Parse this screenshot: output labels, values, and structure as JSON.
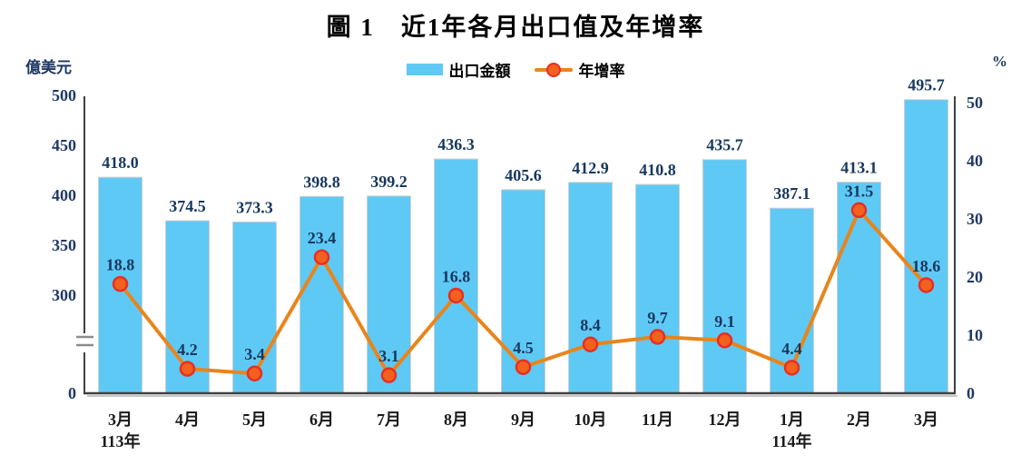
{
  "title": "圖 1　近1年各月出口值及年增率",
  "legend": {
    "bar_label": "出口金額",
    "line_label": "年增率"
  },
  "left_axis": {
    "unit": "億美元",
    "ticks": [
      500,
      450,
      400,
      350,
      300,
      0
    ],
    "has_break": true
  },
  "right_axis": {
    "unit": "%",
    "ticks": [
      50,
      40,
      30,
      20,
      10,
      0
    ]
  },
  "colors": {
    "bar": "#5EC9F5",
    "bar_stroke": "#cfcfcf",
    "line": "#E8851C",
    "marker_fill": "#F2611D",
    "marker_stroke": "#E72F24",
    "value_label": "#17375E",
    "tick_label": "#1F3864",
    "month_label": "#1a1a1a",
    "axis": "#3f3f3f",
    "axis_shadow": "#c6c6c6",
    "break_mark": "#8c8c8c"
  },
  "chart_data": {
    "type": "combo",
    "categories": [
      "3月",
      "4月",
      "5月",
      "6月",
      "7月",
      "8月",
      "9月",
      "10月",
      "11月",
      "12月",
      "1月",
      "2月",
      "3月"
    ],
    "year_notes": [
      {
        "index": 0,
        "label": "113年"
      },
      {
        "index": 10,
        "label": "114年"
      }
    ],
    "series": [
      {
        "name": "出口金額",
        "type": "bar",
        "axis": "left",
        "unit": "億美元",
        "values": [
          418.0,
          374.5,
          373.3,
          398.8,
          399.2,
          436.3,
          405.6,
          412.9,
          410.8,
          435.7,
          387.1,
          413.1,
          495.7
        ]
      },
      {
        "name": "年增率",
        "type": "line",
        "axis": "right",
        "unit": "%",
        "values": [
          18.8,
          4.2,
          3.4,
          23.4,
          3.1,
          16.8,
          4.5,
          8.4,
          9.7,
          9.1,
          4.4,
          31.5,
          18.6
        ]
      }
    ],
    "left_axis_visible_range": [
      300,
      500
    ],
    "right_axis_range": [
      0,
      50
    ],
    "grid": false,
    "legend_position": "top"
  }
}
